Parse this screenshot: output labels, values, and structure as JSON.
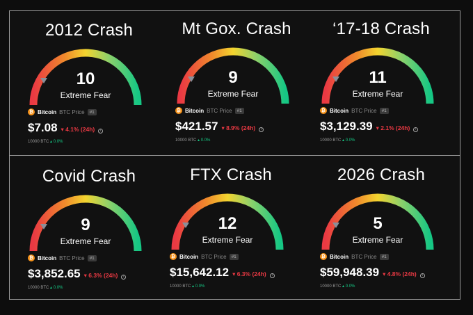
{
  "cards": [
    {
      "title": "2012 Crash",
      "value": "10",
      "sentiment": "Extreme Fear",
      "asset": "Bitcoin",
      "asset_sub": "BTC Price",
      "rank": "#1",
      "price": "$7.08",
      "change": "▾ 4.1% (24h)",
      "info": "i",
      "volume": "10000 BTC",
      "vol_change": "▴ 0.0%",
      "coin_glyph": "₿",
      "value_fraction": 0.1
    },
    {
      "title": "Mt Gox. Crash",
      "value": "9",
      "sentiment": "Extreme Fear",
      "asset": "Bitcoin",
      "asset_sub": "BTC Price",
      "rank": "#1",
      "price": "$421.57",
      "change": "▾ 8.9% (24h)",
      "info": "i",
      "volume": "10000 BTC",
      "vol_change": "▴ 0.0%",
      "coin_glyph": "₿",
      "value_fraction": 0.09
    },
    {
      "title": "‘17-18 Crash",
      "value": "11",
      "sentiment": "Extreme Fear",
      "asset": "Bitcoin",
      "asset_sub": "BTC Price",
      "rank": "#1",
      "price": "$3,129.39",
      "change": "▾ 2.1% (24h)",
      "info": "i",
      "volume": "10000 BTC",
      "vol_change": "▴ 0.0%",
      "coin_glyph": "₿",
      "value_fraction": 0.11
    },
    {
      "title": "Covid Crash",
      "value": "9",
      "sentiment": "Extreme Fear",
      "asset": "Bitcoin",
      "asset_sub": "BTC Price",
      "rank": "#1",
      "price": "$3,852.65",
      "change": "▾ 6.3% (24h)",
      "info": "i",
      "volume": "10000 BTC",
      "vol_change": "▴ 0.0%",
      "coin_glyph": "₿",
      "value_fraction": 0.09
    },
    {
      "title": "FTX Crash",
      "value": "12",
      "sentiment": "Extreme Fear",
      "asset": "Bitcoin",
      "asset_sub": "BTC Price",
      "rank": "#1",
      "price": "$15,642.12",
      "change": "▾ 6.3% (24h)",
      "info": "i",
      "volume": "10000 BTC",
      "vol_change": "▴ 0.0%",
      "coin_glyph": "₿",
      "value_fraction": 0.12
    },
    {
      "title": "2026 Crash",
      "value": "5",
      "sentiment": "Extreme Fear",
      "asset": "Bitcoin",
      "asset_sub": "BTC Price",
      "rank": "#1",
      "price": "$59,948.39",
      "change": "▾ 4.8% (24h)",
      "info": "i",
      "volume": "10000 BTC",
      "vol_change": "▴ 0.0%",
      "coin_glyph": "₿",
      "value_fraction": 0.05
    }
  ],
  "colors": {
    "fear": "#ea3943",
    "neutral": "#f3d42f",
    "greed": "#16c784",
    "bitcoin": "#f7931a",
    "up": "#16c784"
  },
  "icons": {
    "pointer": "triangle-down-icon",
    "coin": "bitcoin-icon",
    "info": "info-icon"
  }
}
